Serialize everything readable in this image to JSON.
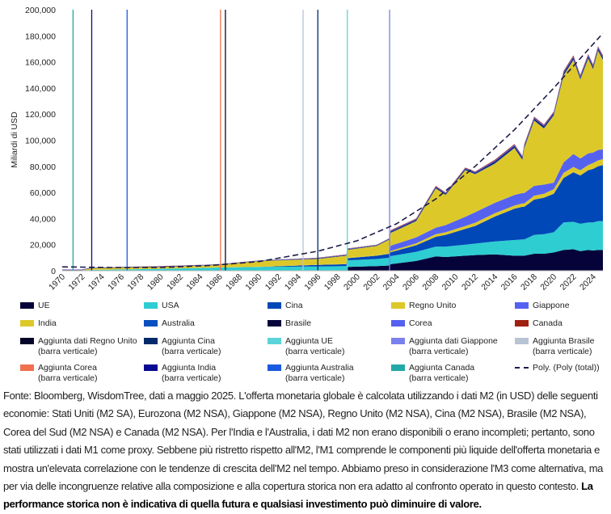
{
  "chart_data": {
    "type": "area",
    "stacked": true,
    "title": "",
    "ylabel": "Miliardi di USD",
    "xlabel": "",
    "xlim": [
      1970,
      2025
    ],
    "ylim": [
      0,
      200000
    ],
    "yticks": [
      0,
      20000,
      40000,
      60000,
      80000,
      100000,
      120000,
      140000,
      160000,
      180000,
      200000
    ],
    "ytick_labels": [
      "0",
      "20,000",
      "40,000",
      "60,000",
      "80,000",
      "100,000",
      "120,000",
      "140,000",
      "160,000",
      "180,000",
      "200,000"
    ],
    "xtick_labels": [
      "1970",
      "1972",
      "1974",
      "1976",
      "1978",
      "1980",
      "1982",
      "1984",
      "1986",
      "1988",
      "1990",
      "1992",
      "1994",
      "1996",
      "1998",
      "2000",
      "2002",
      "2004",
      "2006",
      "2008",
      "2010",
      "2012",
      "2014",
      "2016",
      "2018",
      "2020",
      "2022",
      "2024"
    ],
    "unit_note": "values in thousands of billions USD",
    "x": [
      1970,
      1972,
      1973,
      1980,
      1986,
      1990,
      1996,
      1998.9,
      1999,
      2002,
      2003.3,
      2003.4,
      2006,
      2008,
      2009,
      2011,
      2012,
      2014,
      2016,
      2016.8,
      2017,
      2018,
      2019,
      2020,
      2021,
      2022,
      2022.7,
      2023.5,
      2024,
      2024.5,
      2025
    ],
    "series": [
      {
        "name": "UE",
        "color": "#05033a",
        "values": [
          0,
          0,
          0,
          0,
          0,
          0,
          0,
          0,
          3,
          3.5,
          4,
          5,
          7.5,
          11,
          10.5,
          11.5,
          12,
          12.5,
          11.5,
          11.5,
          11.5,
          13,
          13,
          14,
          16,
          16.5,
          15,
          16,
          15.5,
          16,
          16
        ]
      },
      {
        "name": "USA",
        "color": "#2ecdd2",
        "values": [
          0.3,
          0.3,
          0.6,
          1.5,
          2.5,
          3,
          3.3,
          3.5,
          5,
          5.5,
          6,
          6.2,
          7,
          7.5,
          8,
          8.5,
          8.8,
          10,
          12,
          12.5,
          12.5,
          14.5,
          15,
          15.5,
          21,
          21,
          21,
          21,
          21.5,
          22,
          22
        ]
      },
      {
        "name": "Cina",
        "color": "#0047b8",
        "values": [
          0,
          0,
          0,
          0,
          0,
          0,
          1.2,
          1.5,
          1.6,
          2.5,
          3,
          3,
          5,
          7.5,
          9,
          12,
          13.5,
          19,
          24,
          25,
          25,
          27,
          28,
          29.5,
          34,
          38,
          37,
          40,
          41,
          42,
          43
        ]
      },
      {
        "name": "India",
        "color": "#ddc82a",
        "values": [
          0,
          0,
          0.1,
          0.1,
          0.2,
          0.2,
          0.3,
          0.4,
          0.6,
          0.7,
          0.8,
          1,
          1.5,
          2,
          2,
          2.3,
          2.5,
          2.5,
          2.5,
          2.5,
          2.5,
          3,
          3,
          3.5,
          4,
          4,
          4,
          4,
          4.5,
          4.5,
          4.5
        ]
      },
      {
        "name": "Giappone",
        "color": "#5562f0",
        "values": [
          0,
          0,
          0,
          0,
          0,
          0,
          0,
          0,
          0,
          0,
          0,
          4,
          4.5,
          5,
          5.5,
          7,
          8,
          8,
          8,
          8,
          8,
          7.5,
          7,
          5,
          8,
          10,
          9,
          9,
          8,
          8,
          7.5
        ]
      },
      {
        "name": "Regno Unito",
        "color": "#ddc82a",
        "values": [
          0.1,
          0.1,
          1.2,
          1.3,
          1.7,
          4.2,
          4.2,
          6.1,
          5.8,
          6.8,
          10.2,
          9.8,
          12.5,
          30,
          23,
          35.7,
          29.2,
          30,
          36,
          25.5,
          34.5,
          50,
          43,
          51.5,
          66.5,
          72,
          60.5,
          72.5,
          64,
          76,
          68.5
        ]
      },
      {
        "name": "Australia",
        "color": "#0a4fc0",
        "values": [
          0.1,
          0.1,
          0.1,
          0.1,
          0.1,
          0.1,
          0.2,
          0.2,
          0.2,
          0.2,
          0.2,
          0.4,
          0.4,
          0.4,
          0.4,
          0.4,
          0.4,
          0.6,
          0.6,
          0.6,
          0.6,
          0.6,
          0.6,
          0.6,
          0.7,
          0.7,
          0.7,
          0.7,
          0.7,
          0.7,
          0.7
        ]
      },
      {
        "name": "Brasile",
        "color": "#05053a",
        "values": [
          0.2,
          0.2,
          0.2,
          0.2,
          0.2,
          0.2,
          0.3,
          0.3,
          0.3,
          0.3,
          0.3,
          0.6,
          0.6,
          0.6,
          0.6,
          0.6,
          0.6,
          0.9,
          0.9,
          0.9,
          0.9,
          0.9,
          0.9,
          0.9,
          1.0,
          1.0,
          1.0,
          1.0,
          1.0,
          1.0,
          1.0
        ]
      },
      {
        "name": "Corea",
        "color": "#5560f0",
        "values": [
          0.2,
          0.2,
          0.2,
          0.2,
          0.2,
          0.2,
          0.3,
          0.3,
          0.3,
          0.3,
          0.3,
          0.6,
          0.6,
          0.6,
          0.6,
          0.6,
          0.6,
          0.9,
          0.9,
          0.9,
          0.9,
          0.9,
          0.9,
          0.9,
          1.1,
          1.1,
          1.1,
          1.1,
          1.1,
          1.1,
          1.1
        ]
      },
      {
        "name": "Canada",
        "color": "#a02010",
        "values": [
          0.1,
          0.1,
          0.1,
          0.1,
          0.1,
          0.1,
          0.2,
          0.2,
          0.2,
          0.2,
          0.2,
          0.4,
          0.4,
          0.4,
          0.4,
          0.4,
          0.4,
          0.6,
          0.6,
          0.6,
          0.6,
          0.6,
          0.6,
          0.6,
          0.7,
          0.7,
          0.7,
          0.7,
          0.7,
          0.7,
          0.7
        ]
      }
    ],
    "vertical_bars": [
      {
        "name": "Aggiunta Canada (barra verticale)",
        "year": 1971.1,
        "color": "#23a8a8"
      },
      {
        "name": "Aggiunta India (barra verticale)",
        "year": 1973.0,
        "color": "#0a0a90"
      },
      {
        "name": "Aggiunta Australia (barra verticale)",
        "year": 1976.6,
        "color": "#1a5ae0"
      },
      {
        "name": "Aggiunta Corea (barra verticale)",
        "year": 1986.1,
        "color": "#f07050"
      },
      {
        "name": "Aggiunta dati Regno Unito (barra verticale)",
        "year": 1986.6,
        "color": "#05052a"
      },
      {
        "name": "Aggiunta Brasile (barra verticale)",
        "year": 1994.5,
        "color": "#b8c4d4"
      },
      {
        "name": "Aggiunta Cina (barra verticale)",
        "year": 1996.0,
        "color": "#002a6a"
      },
      {
        "name": "Aggiunta UE (barra verticale)",
        "year": 1999.0,
        "color": "#5ad4d8"
      },
      {
        "name": "Aggiunta dati Giappone (barra verticale)",
        "year": 2003.3,
        "color": "#7a80ee"
      }
    ],
    "trendline": {
      "name": "Poly. (Poly (total))",
      "color": "#1c1c4a",
      "x": [
        1970,
        1975,
        1980,
        1985,
        1990,
        1996,
        2000,
        2004,
        2008,
        2012,
        2016,
        2020,
        2025
      ],
      "y": [
        3,
        2.5,
        2.5,
        4,
        7,
        15,
        23,
        36,
        55,
        80,
        108,
        140,
        182
      ]
    },
    "legend_position": "bottom",
    "legend": [
      {
        "label": "UE",
        "color": "#05033a",
        "kind": "area"
      },
      {
        "label": "USA",
        "color": "#2ecdd2",
        "kind": "area"
      },
      {
        "label": "Cina",
        "color": "#0047b8",
        "kind": "area"
      },
      {
        "label": "Regno Unito",
        "color": "#ddc82a",
        "kind": "area"
      },
      {
        "label": "Giappone",
        "color": "#5562f0",
        "kind": "area"
      },
      {
        "label": "India",
        "color": "#ddc82a",
        "kind": "area"
      },
      {
        "label": "Australia",
        "color": "#0a4fc0",
        "kind": "area"
      },
      {
        "label": "Brasile",
        "color": "#05053a",
        "kind": "area"
      },
      {
        "label": "Corea",
        "color": "#5560f0",
        "kind": "area"
      },
      {
        "label": "Canada",
        "color": "#a02010",
        "kind": "area"
      },
      {
        "label": "Aggiunta dati Regno Unito",
        "label2": "(barra verticale)",
        "color": "#05052a",
        "kind": "bar"
      },
      {
        "label": "Aggiunta Cina",
        "label2": "(barra verticale)",
        "color": "#002a6a",
        "kind": "bar"
      },
      {
        "label": "Aggiunta UE",
        "label2": "(barra verticale)",
        "color": "#5ad4d8",
        "kind": "bar"
      },
      {
        "label": "Aggiunta dati Giappone",
        "label2": "(barra verticale)",
        "color": "#7a80ee",
        "kind": "bar"
      },
      {
        "label": "Aggiunta Brasile",
        "label2": "(barra verticale)",
        "color": "#b8c4d4",
        "kind": "bar"
      },
      {
        "label": "Aggiunta Corea",
        "label2": "(barra verticale)",
        "color": "#f07050",
        "kind": "bar"
      },
      {
        "label": "Aggiunta India",
        "label2": "(barra verticale)",
        "color": "#0a0a90",
        "kind": "bar"
      },
      {
        "label": "Aggiunta Australia",
        "label2": "(barra verticale)",
        "color": "#1a5ae0",
        "kind": "bar"
      },
      {
        "label": "Aggiunta Canada",
        "label2": "(barra verticale)",
        "color": "#23a8a8",
        "kind": "bar"
      },
      {
        "label": "Poly. (Poly (total))",
        "color": "#1c1c4a",
        "kind": "dash"
      }
    ]
  },
  "footer": {
    "text": "Fonte: Bloomberg, WisdomTree, dati a maggio 2025. L'offerta monetaria globale è calcolata utilizzando i dati M2 (in USD) delle seguenti economie: Stati Uniti (M2 SA), Eurozona (M2 NSA), Giappone (M2 NSA), Regno Unito (M2 NSA), Cina (M2 NSA), Brasile (M2 NSA), Corea del Sud (M2 NSA) e Canada (M2 NSA). Per l'India e l'Australia, i dati M2 non erano disponibili o erano incompleti; pertanto, sono stati utilizzati i dati M1 come proxy. Sebbene più ristretto rispetto all'M2, l'M1 comprende le componenti più liquide dell'offerta monetaria e mostra un'elevata correlazione con le tendenze di crescita dell'M2 nel tempo. Abbiamo preso in considerazione l'M3 come alternativa, ma per via delle incongruenze relative alla composizione e alla copertura storica non era adatto al confronto operato in questo contesto. ",
    "disclaimer": "La performance storica non è indicativa di quella futura e qualsiasi investimento può diminuire di valore."
  }
}
